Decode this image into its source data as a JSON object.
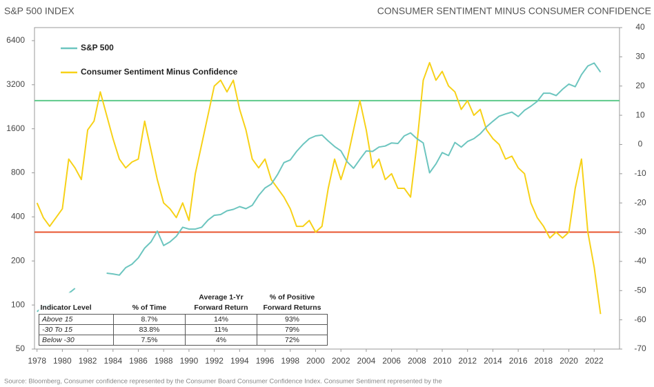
{
  "chart_data": {
    "type": "line",
    "y_label": "S&P 500 INDEX",
    "y2_label": "CONSUMER SENTIMENT MINUS CONSUMER CONFIDENCE",
    "x": [
      1978.0,
      1978.5,
      1979.0,
      1979.5,
      1980.0,
      1980.5,
      1981.0,
      1981.5,
      1982.0,
      1982.5,
      1983.0,
      1983.5,
      1984.0,
      1984.5,
      1985.0,
      1985.5,
      1986.0,
      1986.5,
      1987.0,
      1987.5,
      1988.0,
      1988.5,
      1989.0,
      1989.5,
      1990.0,
      1990.5,
      1991.0,
      1991.5,
      1992.0,
      1992.5,
      1993.0,
      1993.5,
      1994.0,
      1994.5,
      1995.0,
      1995.5,
      1996.0,
      1996.5,
      1997.0,
      1997.5,
      1998.0,
      1998.5,
      1999.0,
      1999.5,
      2000.0,
      2000.5,
      2001.0,
      2001.5,
      2002.0,
      2002.5,
      2003.0,
      2003.5,
      2004.0,
      2004.5,
      2005.0,
      2005.5,
      2006.0,
      2006.5,
      2007.0,
      2007.5,
      2008.0,
      2008.5,
      2009.0,
      2009.5,
      2010.0,
      2010.5,
      2011.0,
      2011.5,
      2012.0,
      2012.5,
      2013.0,
      2013.5,
      2014.0,
      2014.5,
      2015.0,
      2015.5,
      2016.0,
      2016.5,
      2017.0,
      2017.5,
      2018.0,
      2018.5,
      2019.0,
      2019.5,
      2020.0,
      2020.5,
      2021.0,
      2021.5,
      2022.0,
      2022.5
    ],
    "series": [
      {
        "name": "S&P 500",
        "color": "#6cc5bf",
        "axis": "y",
        "values": [
          90,
          98,
          100,
          null,
          null,
          120,
          130,
          null,
          null,
          null,
          null,
          165,
          163,
          160,
          180,
          190,
          210,
          245,
          270,
          320,
          255,
          270,
          295,
          340,
          330,
          330,
          340,
          380,
          410,
          415,
          440,
          450,
          470,
          455,
          480,
          560,
          630,
          670,
          780,
          940,
          980,
          1120,
          1250,
          1370,
          1430,
          1450,
          1320,
          1210,
          1130,
          950,
          860,
          990,
          1130,
          1120,
          1200,
          1220,
          1280,
          1270,
          1430,
          1500,
          1370,
          1280,
          800,
          920,
          1100,
          1050,
          1290,
          1200,
          1310,
          1370,
          1480,
          1650,
          1800,
          1950,
          2020,
          2080,
          1940,
          2140,
          2280,
          2460,
          2800,
          2800,
          2700,
          2980,
          3230,
          3100,
          3750,
          4300,
          4500,
          3900
        ]
      },
      {
        "name": "Consumer Sentiment Minus Confidence",
        "color": "#f7d117",
        "axis": "y2",
        "values": [
          -20,
          -25,
          -28,
          -25,
          -22,
          -5,
          -8,
          -12,
          5,
          8,
          18,
          10,
          2,
          -5,
          -8,
          -6,
          -5,
          8,
          -2,
          -12,
          -20,
          -22,
          -25,
          -20,
          -26,
          -10,
          0,
          10,
          20,
          22,
          18,
          22,
          12,
          5,
          -5,
          -8,
          -5,
          -12,
          -15,
          -18,
          -22,
          -28,
          -28,
          -26,
          -30,
          -28,
          -15,
          -5,
          -12,
          -5,
          5,
          15,
          5,
          -8,
          -5,
          -12,
          -10,
          -15,
          -15,
          -18,
          0,
          22,
          28,
          22,
          25,
          20,
          18,
          12,
          15,
          10,
          12,
          5,
          2,
          0,
          -5,
          -4,
          -8,
          -10,
          -20,
          -25,
          -28,
          -32,
          -30,
          -32,
          -30,
          -15,
          -5,
          -30,
          -42,
          -58
        ]
      }
    ],
    "reference_lines": [
      {
        "value": 15,
        "color": "#5cc98a",
        "axis": "y2"
      },
      {
        "value": -30,
        "color": "#e8532e",
        "axis": "y2"
      }
    ],
    "xlim": [
      1977.8,
      2024
    ],
    "xticks": [
      1978,
      1980,
      1982,
      1984,
      1986,
      1988,
      1990,
      1992,
      1994,
      1996,
      1998,
      2000,
      2002,
      2004,
      2006,
      2008,
      2010,
      2012,
      2014,
      2016,
      2018,
      2020,
      2022
    ],
    "ylim": [
      50,
      7860
    ],
    "ylog": true,
    "yticks": [
      50,
      100,
      200,
      400,
      800,
      1600,
      3200,
      6400
    ],
    "y2lim": [
      -70,
      40
    ],
    "y2ticks": [
      40,
      30,
      20,
      10,
      0,
      -10,
      -20,
      -30,
      -40,
      -50,
      -60,
      -70
    ],
    "legend": "top-left"
  },
  "table": {
    "header": [
      "Indicator Level",
      "% of Time",
      "Average 1-Yr Forward Return",
      "% of Positive Forward Returns"
    ],
    "rows": [
      [
        "Above 15",
        "8.7%",
        "14%",
        "93%"
      ],
      [
        "-30 To 15",
        "83.8%",
        "11%",
        "79%"
      ],
      [
        "Below -30",
        "7.5%",
        "4%",
        "72%"
      ]
    ]
  },
  "source": "Source: Bloomberg, Consumer confidence represented by the Consumer Board Consumer Confidence Index. Consumer Sentiment represented by the"
}
